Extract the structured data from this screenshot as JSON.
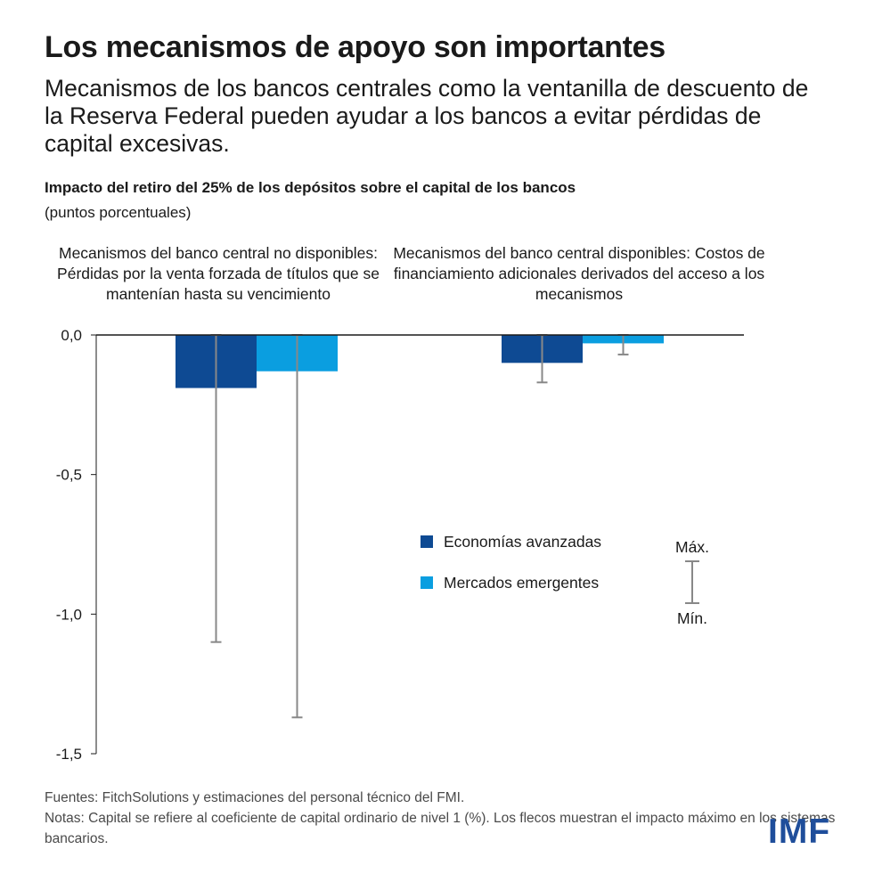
{
  "header": {
    "title": "Los mecanismos de apoyo son importantes",
    "subtitle": "Mecanismos de los bancos centrales como la ventanilla de descuento de la Reserva Federal pueden ayudar a los bancos a evitar pérdidas de capital excesivas."
  },
  "chart_data": {
    "type": "bar",
    "title": "Impacto del retiro del 25% de los depósitos sobre el capital de los bancos",
    "units": "(puntos porcentuales)",
    "categories": [
      "Mecanismos del banco central no disponibles: Pérdidas por la venta forzada de títulos que se mantenían hasta su vencimiento",
      "Mecanismos del banco central disponibles: Costos de financiamiento adicionales derivados del acceso a los mecanismos"
    ],
    "series": [
      {
        "name": "Economías avanzadas",
        "color": "#0e4a93",
        "values": [
          -0.19,
          -0.1
        ],
        "max": [
          0.0,
          0.0
        ],
        "min": [
          -1.1,
          -0.17
        ]
      },
      {
        "name": "Mercados emergentes",
        "color": "#0a9ee0",
        "values": [
          -0.13,
          -0.03
        ],
        "max": [
          0.0,
          0.0
        ],
        "min": [
          -1.37,
          -0.07
        ]
      }
    ],
    "ylim": [
      -1.5,
      0.0
    ],
    "yticks": [
      0.0,
      -0.5,
      -1.0,
      -1.5
    ],
    "ytick_labels": [
      "0,0",
      "-0,5",
      "-1,0",
      "-1,5"
    ],
    "legend": {
      "position": "bottom-right",
      "range_max_label": "Máx.",
      "range_min_label": "Mín.",
      "whisker_color": "#888888"
    }
  },
  "footer": {
    "sources": "Fuentes: FitchSolutions y estimaciones del personal técnico del FMI.",
    "notes": "Notas: Capital se refiere al coeficiente de capital ordinario de nivel 1 (%). Los flecos muestran el impacto máximo en los sistemas bancarios."
  },
  "logo": "IMF"
}
